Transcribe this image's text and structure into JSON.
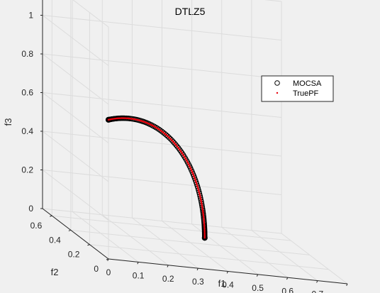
{
  "chart_data": {
    "type": "scatter",
    "title": "DTLZ5",
    "xlabel": "f1",
    "ylabel": "f2",
    "zlabel": "f3",
    "xlim": [
      0,
      0.8
    ],
    "ylim": [
      0,
      0.7
    ],
    "zlim": [
      0,
      1.2
    ],
    "xticks": [
      "0",
      "0.1",
      "0.2",
      "0.3",
      "0.4",
      "0.5",
      "0.6",
      "0.7",
      "0.8"
    ],
    "yticks": [
      "0",
      "0.2",
      "0.4",
      "0.6"
    ],
    "zticks": [
      "0",
      "0.2",
      "0.4",
      "0.6",
      "0.8",
      "1",
      "1.2"
    ],
    "grid": true,
    "legend_position": "top-right",
    "series": [
      {
        "name": "MOCSA",
        "marker": "open-circle",
        "color": "#000000",
        "t_from": 0.0,
        "t_to": 1.5708,
        "count": 130,
        "endpoints": [
          {
            "f1": 0.0,
            "f2": 0.0,
            "f3": 0.72
          },
          {
            "f1": 0.48,
            "f2": 0.5,
            "f3": 0.0
          }
        ]
      },
      {
        "name": "TruePF",
        "marker": "dot",
        "color": "#e8000b",
        "t_from": 0.0,
        "t_to": 1.5708,
        "count": 220
      }
    ]
  }
}
